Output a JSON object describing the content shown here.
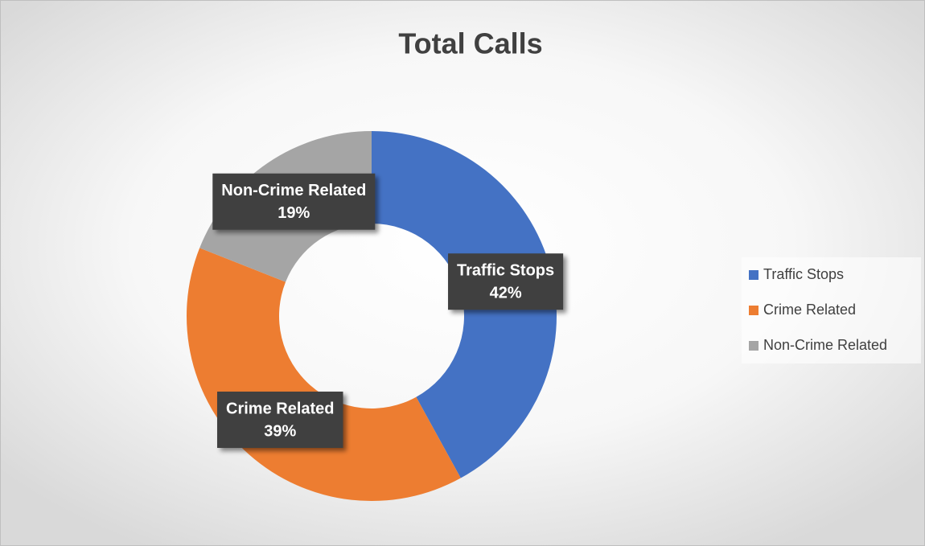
{
  "chart_data": {
    "type": "donut",
    "title": "Total Calls",
    "categories": [
      "Traffic Stops",
      "Crime Related",
      "Non-Crime Related"
    ],
    "values": [
      42,
      39,
      19
    ],
    "value_labels": [
      "42%",
      "39%",
      "19%"
    ],
    "colors": [
      "#4472c4",
      "#ed7d31",
      "#a5a5a5"
    ],
    "legend": "right"
  }
}
